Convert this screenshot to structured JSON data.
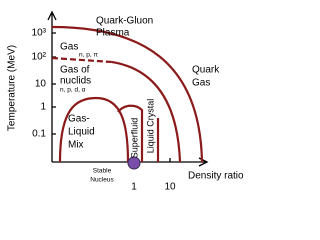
{
  "axes": {
    "y_label": "Temperature (MeV)",
    "x_label": "Density ratio",
    "y_ticks": [
      "10³",
      "10²",
      "10",
      "1",
      "0.1"
    ],
    "x_ticks": [
      "1",
      "10"
    ]
  },
  "regions": {
    "qgp": [
      "Quark-Gluon",
      "Plasma"
    ],
    "gas": "Gas",
    "gas_particles": "n, p, π",
    "nuclids": [
      "Gas of",
      "nuclids"
    ],
    "nuclid_particles": "n, p, d, α",
    "quark_gas": [
      "Quark",
      "Gas"
    ],
    "mix": [
      "Gas-",
      "Liquid",
      "Mix"
    ],
    "superfluid": "Superfluid",
    "liquid_crystal": "Liquid Crystal"
  },
  "marker": [
    "Stable",
    "Nucleus"
  ]
}
